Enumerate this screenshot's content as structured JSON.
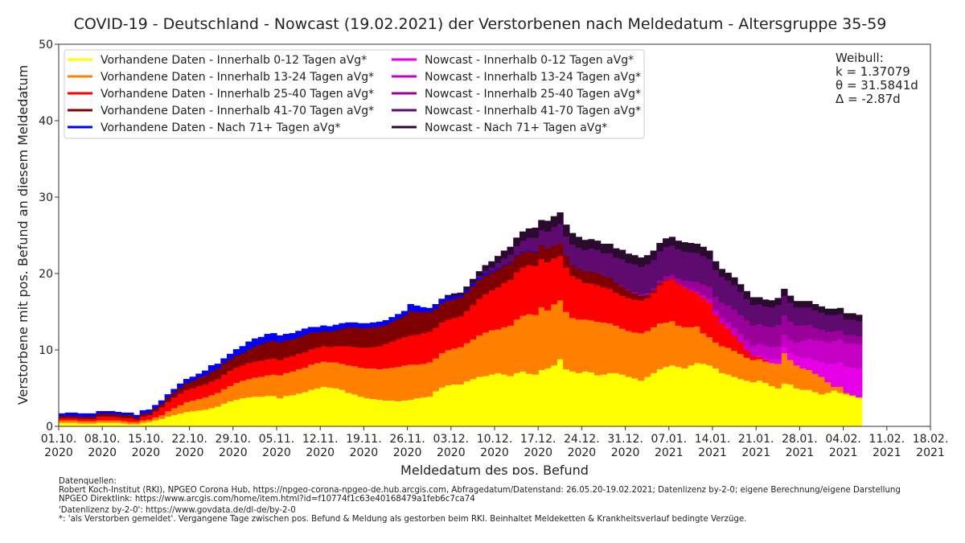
{
  "chart_data": {
    "type": "bar",
    "stacked": true,
    "title": "COVID-19 - Deutschland - Nowcast (19.02.2021) der Verstorbenen nach Meldedatum - Altersgruppe 35-59",
    "xlabel": "Meldedatum des pos. Befund",
    "ylabel": "Verstorbene mit pos. Befund an diesem Meldedatum",
    "ylim": [
      0,
      50
    ],
    "yticks": [
      "0",
      "10",
      "20",
      "30",
      "40",
      "50"
    ],
    "x_start_date": "01.10.2020",
    "x_days_total": 140,
    "xticks": [
      {
        "l1": "01.10.",
        "l2": "2020",
        "day": 0
      },
      {
        "l1": "08.10.",
        "l2": "2020",
        "day": 7
      },
      {
        "l1": "15.10.",
        "l2": "2020",
        "day": 14
      },
      {
        "l1": "22.10.",
        "l2": "2020",
        "day": 21
      },
      {
        "l1": "29.10.",
        "l2": "2020",
        "day": 28
      },
      {
        "l1": "05.11.",
        "l2": "2020",
        "day": 35
      },
      {
        "l1": "12.11.",
        "l2": "2020",
        "day": 42
      },
      {
        "l1": "19.11.",
        "l2": "2020",
        "day": 49
      },
      {
        "l1": "26.11.",
        "l2": "2020",
        "day": 56
      },
      {
        "l1": "03.12.",
        "l2": "2020",
        "day": 63
      },
      {
        "l1": "10.12.",
        "l2": "2020",
        "day": 70
      },
      {
        "l1": "17.12.",
        "l2": "2020",
        "day": 77
      },
      {
        "l1": "24.12.",
        "l2": "2020",
        "day": 84
      },
      {
        "l1": "31.12.",
        "l2": "2020",
        "day": 91
      },
      {
        "l1": "07.01.",
        "l2": "2021",
        "day": 98
      },
      {
        "l1": "14.01.",
        "l2": "2021",
        "day": 105
      },
      {
        "l1": "21.01.",
        "l2": "2021",
        "day": 112
      },
      {
        "l1": "28.01.",
        "l2": "2021",
        "day": 119
      },
      {
        "l1": "04.02.",
        "l2": "2021",
        "day": 126
      },
      {
        "l1": "11.02.",
        "l2": "2021",
        "day": 133
      },
      {
        "l1": "18.02.",
        "l2": "2021",
        "day": 140
      }
    ],
    "legend_position": "top-left",
    "series": [
      {
        "name": "Vorhandene Daten - Innerhalb 0-12 Tagen aVg*",
        "color": "#ffff00",
        "start_day": 0,
        "values": [
          0.5,
          0.5,
          0.5,
          0.4,
          0.4,
          0.4,
          0.5,
          0.5,
          0.5,
          0.5,
          0.4,
          0.3,
          0.3,
          0.5,
          0.6,
          0.8,
          1.0,
          1.3,
          1.5,
          1.7,
          1.9,
          2.0,
          2.1,
          2.2,
          2.4,
          2.6,
          3.0,
          3.3,
          3.5,
          3.7,
          3.8,
          3.9,
          3.9,
          4.0,
          4.0,
          3.7,
          4.0,
          4.1,
          4.3,
          4.5,
          4.8,
          5.0,
          5.2,
          5.1,
          5.0,
          4.8,
          4.4,
          4.2,
          3.9,
          3.7,
          3.6,
          3.5,
          3.4,
          3.4,
          3.3,
          3.4,
          3.5,
          3.7,
          3.8,
          3.9,
          4.6,
          5.1,
          5.4,
          5.5,
          5.5,
          5.9,
          6.2,
          6.5,
          6.6,
          6.8,
          7.0,
          6.8,
          6.6,
          7.0,
          7.2,
          6.9,
          6.8,
          7.4,
          7.6,
          8.0,
          8.8,
          7.5,
          7.2,
          7.0,
          7.2,
          7.1,
          6.7,
          6.8,
          7.0,
          7.0,
          6.8,
          6.5,
          6.3,
          6.0,
          6.5,
          7.0,
          7.5,
          7.8,
          8.0,
          7.8,
          7.6,
          8.0,
          8.3,
          8.2,
          8.0,
          7.6,
          7.0,
          6.8,
          6.5,
          6.2,
          6.0,
          5.8,
          6.0,
          5.7,
          5.3,
          5.0,
          5.6,
          5.5,
          5.0,
          4.8,
          4.8,
          4.5,
          4.2,
          4.4,
          4.7,
          4.4,
          4.2,
          4.0,
          3.8
        ]
      },
      {
        "name": "Vorhandene Daten - Innerhalb 13-24 Tagen aVg*",
        "color": "#ff7f00",
        "start_day": 0,
        "values": [
          0.3,
          0.3,
          0.3,
          0.3,
          0.3,
          0.3,
          0.3,
          0.3,
          0.3,
          0.3,
          0.3,
          0.3,
          0.3,
          0.3,
          0.3,
          0.4,
          0.5,
          0.7,
          0.9,
          1.1,
          1.3,
          1.4,
          1.5,
          1.6,
          1.7,
          1.8,
          1.9,
          2.0,
          2.2,
          2.3,
          2.4,
          2.5,
          2.6,
          2.7,
          2.8,
          3.0,
          3.0,
          3.1,
          3.2,
          3.2,
          3.3,
          3.3,
          3.3,
          3.3,
          3.4,
          3.4,
          3.6,
          3.7,
          3.8,
          3.9,
          4.0,
          4.0,
          4.2,
          4.3,
          4.5,
          4.6,
          4.6,
          4.4,
          4.4,
          4.5,
          4.3,
          4.5,
          4.6,
          4.7,
          4.9,
          5.0,
          5.2,
          5.4,
          5.7,
          5.8,
          5.7,
          6.2,
          6.6,
          7.0,
          7.3,
          7.8,
          7.8,
          8.2,
          7.6,
          8.0,
          7.7,
          7.5,
          7.0,
          7.0,
          6.8,
          6.8,
          7.0,
          6.8,
          6.5,
          6.2,
          6.0,
          6.0,
          6.0,
          6.2,
          6.0,
          6.0,
          6.0,
          5.8,
          5.8,
          5.4,
          5.4,
          5.0,
          4.8,
          4.0,
          3.7,
          3.4,
          3.5,
          3.5,
          3.4,
          3.3,
          3.0,
          2.9,
          2.8,
          2.8,
          3.0,
          3.2,
          4.0,
          3.2,
          3.0,
          2.8,
          2.6,
          2.4,
          2.3,
          1.4,
          0.5,
          0.8,
          0.2,
          0.1,
          0.0
        ]
      },
      {
        "name": "Vorhandene Daten - Innerhalb 25-40 Tagen aVg*",
        "color": "#ff0000",
        "start_day": 0,
        "values": [
          0.3,
          0.3,
          0.3,
          0.3,
          0.3,
          0.3,
          0.5,
          0.5,
          0.5,
          0.4,
          0.4,
          0.5,
          0.3,
          0.5,
          0.6,
          0.8,
          1.0,
          1.2,
          1.4,
          1.5,
          1.6,
          1.6,
          1.7,
          1.7,
          1.8,
          1.8,
          1.9,
          2.0,
          2.0,
          2.0,
          2.1,
          2.1,
          2.1,
          2.1,
          2.1,
          2.0,
          2.0,
          2.0,
          2.0,
          2.0,
          2.0,
          2.0,
          2.0,
          2.0,
          2.1,
          2.3,
          2.5,
          2.5,
          2.6,
          2.7,
          2.8,
          3.0,
          3.2,
          3.4,
          3.6,
          3.7,
          3.8,
          3.9,
          4.0,
          4.0,
          4.0,
          4.0,
          4.0,
          4.0,
          4.0,
          4.2,
          4.5,
          4.8,
          5.0,
          5.2,
          5.5,
          5.8,
          6.0,
          6.2,
          6.3,
          6.4,
          6.4,
          6.3,
          6.3,
          6.0,
          5.8,
          5.8,
          5.5,
          5.3,
          4.8,
          4.8,
          4.8,
          4.6,
          4.5,
          4.3,
          4.3,
          4.3,
          4.3,
          4.3,
          4.3,
          4.5,
          5.0,
          5.5,
          5.5,
          5.5,
          5.2,
          4.8,
          4.3,
          4.6,
          4.5,
          3.6,
          3.0,
          2.5,
          2.0,
          1.5,
          1.0,
          0.5,
          0.3,
          0.2
        ]
      },
      {
        "name": "Vorhandene Daten - Innerhalb 41-70 Tagen aVg*",
        "color": "#7f0000",
        "start_day": 0,
        "values": [
          0.3,
          0.3,
          0.3,
          0.3,
          0.3,
          0.3,
          0.4,
          0.4,
          0.4,
          0.4,
          0.4,
          0.4,
          0.3,
          0.4,
          0.3,
          0.4,
          0.5,
          0.6,
          0.7,
          0.8,
          0.9,
          1.0,
          1.1,
          1.2,
          1.3,
          1.4,
          1.5,
          1.5,
          1.6,
          1.6,
          1.8,
          2.0,
          2.2,
          2.3,
          2.3,
          2.3,
          2.3,
          2.2,
          2.2,
          2.3,
          2.2,
          2.0,
          2.0,
          2.0,
          2.1,
          2.3,
          2.5,
          2.6,
          2.6,
          2.6,
          2.6,
          2.6,
          2.5,
          2.6,
          2.7,
          2.8,
          3.2,
          3.0,
          2.8,
          2.6,
          2.5,
          2.5,
          2.5,
          2.5,
          2.5,
          2.5,
          2.5,
          2.5,
          2.5,
          2.4,
          2.4,
          2.3,
          2.2,
          2.1,
          2.0,
          1.9,
          1.8,
          1.8,
          1.8,
          1.7,
          1.6,
          1.5,
          1.4,
          1.3,
          1.5,
          1.6,
          1.6,
          1.5,
          1.5,
          1.3,
          1.2,
          1.0,
          0.8,
          0.6,
          0.4,
          0.3,
          0.2,
          0.1
        ]
      },
      {
        "name": "Vorhandene Daten - Nach 71+ Tagen aVg*",
        "color": "#0000ff",
        "start_day": 0,
        "values": [
          0.3,
          0.4,
          0.4,
          0.4,
          0.4,
          0.4,
          0.3,
          0.3,
          0.3,
          0.3,
          0.3,
          0.3,
          0.3,
          0.4,
          0.4,
          0.4,
          0.4,
          0.4,
          0.4,
          0.5,
          0.5,
          0.5,
          0.5,
          0.6,
          0.8,
          0.6,
          0.6,
          0.7,
          0.8,
          0.9,
          1.0,
          1.0,
          0.9,
          1.0,
          1.0,
          0.9,
          0.8,
          0.8,
          0.8,
          0.8,
          0.7,
          0.7,
          0.7,
          0.7,
          0.7,
          0.7,
          0.6,
          0.6,
          0.6,
          0.6,
          0.6,
          0.6,
          0.6,
          0.6,
          0.6,
          0.6,
          0.9,
          0.8,
          0.6,
          0.5,
          0.5,
          0.5,
          0.5,
          0.4,
          0.3,
          0.3,
          0.3,
          0.3,
          0.3,
          0.2,
          0.2,
          0.1,
          0.1,
          0.1,
          0.1,
          0.1,
          0.1
        ]
      },
      {
        "name": "Nowcast - Innerhalb 0-12 Tagen aVg*",
        "color": "#e600e6",
        "start_day": 110,
        "values": [
          0.0,
          0.0,
          0.2,
          0.3,
          0.5,
          0.6,
          0.8,
          1.0,
          1.2,
          1.4,
          1.6,
          1.8,
          2.0,
          2.4,
          3.0,
          3.2,
          3.4,
          3.6,
          3.8
        ]
      },
      {
        "name": "Nowcast - Innerhalb 13-24 Tagen aVg*",
        "color": "#c400c4",
        "start_day": 100,
        "values": [
          0.1,
          0.2,
          0.3,
          0.4,
          0.5,
          0.6,
          0.7,
          0.8,
          1.0,
          1.1,
          1.3,
          1.4,
          1.5,
          1.6,
          1.6,
          1.7,
          1.6,
          1.6,
          1.8,
          2.2,
          2.5,
          2.6,
          2.7,
          2.8,
          3.0,
          3.0,
          3.0,
          3.2,
          3.2
        ]
      },
      {
        "name": "Nowcast - Innerhalb 25-40 Tagen aVg*",
        "color": "#9a009a",
        "start_day": 90,
        "values": [
          0.1,
          0.1,
          0.2,
          0.2,
          0.3,
          0.3,
          0.4,
          0.5,
          0.6,
          0.7,
          0.8,
          1.0,
          1.2,
          1.4,
          1.6,
          1.8,
          2.0,
          2.2,
          2.4,
          2.5,
          2.6,
          2.6,
          2.6,
          2.5,
          2.6,
          2.8,
          2.6,
          2.4,
          2.2,
          2.0,
          1.8,
          1.6,
          1.5,
          1.4,
          1.3,
          1.2,
          1.2,
          1.1,
          1.0
        ]
      },
      {
        "name": "Nowcast - Innerhalb 41-70 Tagen aVg*",
        "color": "#5e0a6e",
        "start_day": 66,
        "values": [
          0.1,
          0.2,
          0.3,
          0.4,
          0.6,
          0.8,
          1.0,
          1.2,
          1.4,
          1.6,
          1.8,
          2.0,
          2.2,
          2.4,
          2.6,
          2.6,
          2.7,
          2.8,
          2.8,
          3.0,
          3.0,
          3.0,
          3.2,
          3.3,
          3.5,
          3.5,
          3.6,
          3.6,
          3.7,
          3.7,
          3.8,
          3.8,
          3.8,
          3.8,
          3.8,
          3.8,
          3.8,
          3.7,
          3.6,
          3.5,
          3.4,
          3.3,
          3.2,
          3.0,
          2.8,
          2.7,
          2.6,
          2.6,
          2.6,
          2.6,
          2.5,
          2.5,
          2.4,
          2.4,
          2.3,
          2.3,
          2.2,
          2.2,
          2.1,
          2.1,
          2.0,
          2.0,
          2.0
        ]
      },
      {
        "name": "Nowcast - Nach 71+ Tagen aVg*",
        "color": "#2a0a2e",
        "start_day": 60,
        "values": [
          0.1,
          0.1,
          0.2,
          0.3,
          0.3,
          0.4,
          0.5,
          0.6,
          0.7,
          0.8,
          0.9,
          1.0,
          1.0,
          1.1,
          1.2,
          1.2,
          1.3,
          1.3,
          1.4,
          1.4,
          1.5,
          1.5,
          1.5,
          1.4,
          1.3,
          1.2,
          1.2,
          1.2,
          1.2,
          1.2,
          1.2,
          1.2,
          1.2,
          1.2,
          1.2,
          1.2,
          1.1,
          1.1,
          1.1,
          1.1,
          1.2,
          1.2,
          1.2,
          1.2,
          1.1,
          1.1,
          1.0,
          1.0,
          1.0,
          1.0,
          1.0,
          1.0,
          0.9,
          0.9,
          0.9,
          0.9,
          0.9,
          0.9,
          0.8,
          0.8,
          0.8,
          0.8,
          0.8,
          0.8,
          0.8,
          0.8,
          0.8,
          0.8,
          0.8
        ]
      }
    ],
    "annotation": {
      "line1": "Weibull:",
      "line2": "k = 1.37079",
      "line3": "θ = 31.5841d",
      "line4": "Δ = -2.87d"
    }
  },
  "footer": {
    "heading": "Datenquellen:",
    "line1": "Robert Koch-Institut (RKI), NPGEO Corona Hub, https://npgeo-corona-npgeo-de.hub.arcgis.com, Abfragedatum/Datenstand: 26.05.20-19.02.2021; Datenlizenz by-2-0; eigene Berechnung/eigene Darstellung",
    "line2": "NPGEO Direktlink: https://www.arcgis.com/home/item.html?id=f10774f1c63e40168479a1feb6c7ca74",
    "line3": "'Datenlizenz by-2-0': https://www.govdata.de/dl-de/by-2-0",
    "line4": "*: 'als Verstorben gemeldet'. Vergangene Tage zwischen pos. Befund & Meldung als gestorben beim RKI. Beinhaltet Meldeketten & Krankheitsverlauf bedingte Verzüge."
  }
}
